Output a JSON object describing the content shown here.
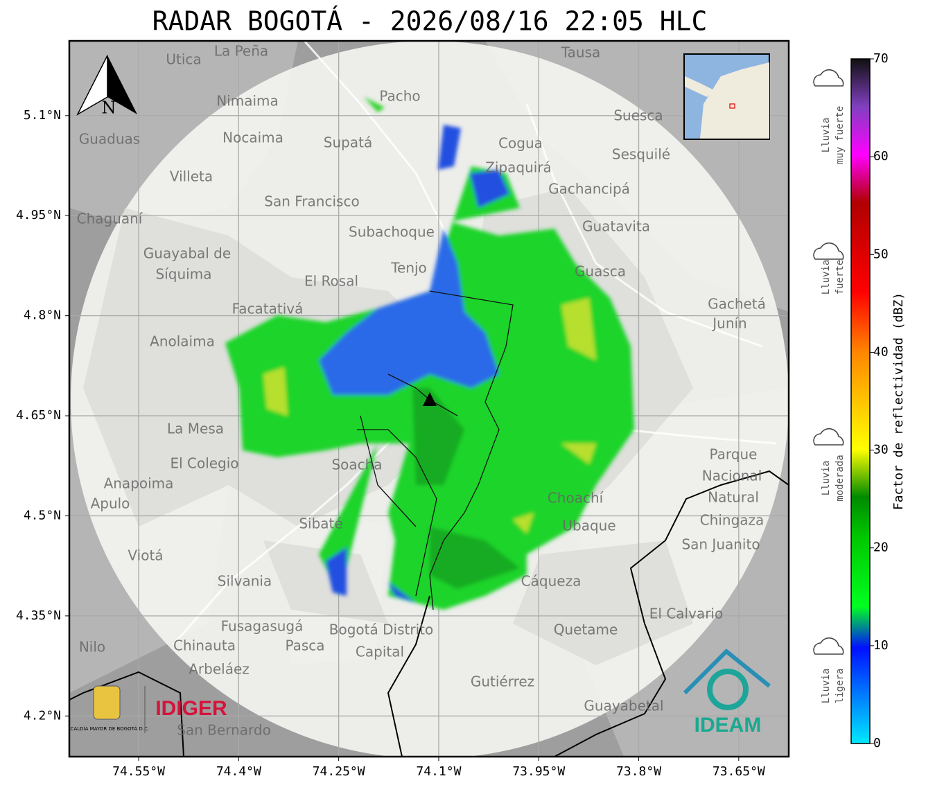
{
  "title": "RADAR BOGOTÁ - 2026/08/16 22:05 HLC",
  "map": {
    "xlim": [
      -74.654,
      -73.575
    ],
    "ylim": [
      4.139,
      5.212
    ],
    "xticks": [
      {
        "value": -74.55,
        "label": "74.55°W"
      },
      {
        "value": -74.4,
        "label": "74.4°W"
      },
      {
        "value": -74.25,
        "label": "74.25°W"
      },
      {
        "value": -74.1,
        "label": "74.1°W"
      },
      {
        "value": -73.95,
        "label": "73.95°W"
      },
      {
        "value": -73.8,
        "label": "73.8°W"
      },
      {
        "value": -73.65,
        "label": "73.65°W"
      }
    ],
    "yticks": [
      {
        "value": 4.2,
        "label": "4.2°N"
      },
      {
        "value": 4.35,
        "label": "4.35°N"
      },
      {
        "value": 4.5,
        "label": "4.5°N"
      },
      {
        "value": 4.65,
        "label": "4.65°N"
      },
      {
        "value": 4.8,
        "label": "4.8°N"
      },
      {
        "value": 4.95,
        "label": "4.95°N"
      },
      {
        "value": 5.1,
        "label": "5.1°N"
      }
    ],
    "grid": true,
    "compass": "N",
    "places": [
      "La Peña",
      "Utica",
      "Tausa",
      "Pacho",
      "Nimaima",
      "Guaduas",
      "Nocaima",
      "Supatá",
      "Cogua",
      "Suesca",
      "Sesquilé",
      "Villeta",
      "Zipaquirá",
      "San Francisco",
      "Gachancipá",
      "Chaguaní",
      "Subachoque",
      "Guatavita",
      "Guayabal de",
      "Síquima",
      "Tenjo",
      "El Rosal",
      "Guasca",
      "Facatativá",
      "Gachetá",
      "Junín",
      "Anolaima",
      "La Mesa",
      "El Colegio",
      "Soacha",
      "Anapoima",
      "Apulo",
      "Parque",
      "Nacional",
      "Natural",
      "Chingaza",
      "Sibaté",
      "Choachí",
      "Ubaque",
      "San Juanito",
      "Viotá",
      "Silvania",
      "Cáqueza",
      "El Calvario",
      "Fusagasugá",
      "Bogotá Distrito",
      "Capital",
      "Quetame",
      "Chinauta",
      "Pasca",
      "Nilo",
      "Arbeláez",
      "Gutiérrez",
      "Guayabetal",
      "San Bernardo"
    ]
  },
  "colorbar": {
    "label": "Factor de reflectividad (dBZ)",
    "lim": [
      0,
      70
    ],
    "ticks": [
      0,
      10,
      20,
      30,
      40,
      50,
      60,
      70
    ]
  },
  "rain_levels": [
    [
      "Lluvia",
      "ligera"
    ],
    [
      "Lluvia",
      "moderada"
    ],
    [
      "Lluvia",
      "fuerte"
    ],
    [
      "Lluvia",
      "muy fuerte"
    ]
  ],
  "logos": {
    "alcaldia": "ALCALDÍA MAYOR DE BOGOTÁ D.C.",
    "idiger": "IDIGER",
    "ideam": "IDEAM"
  }
}
